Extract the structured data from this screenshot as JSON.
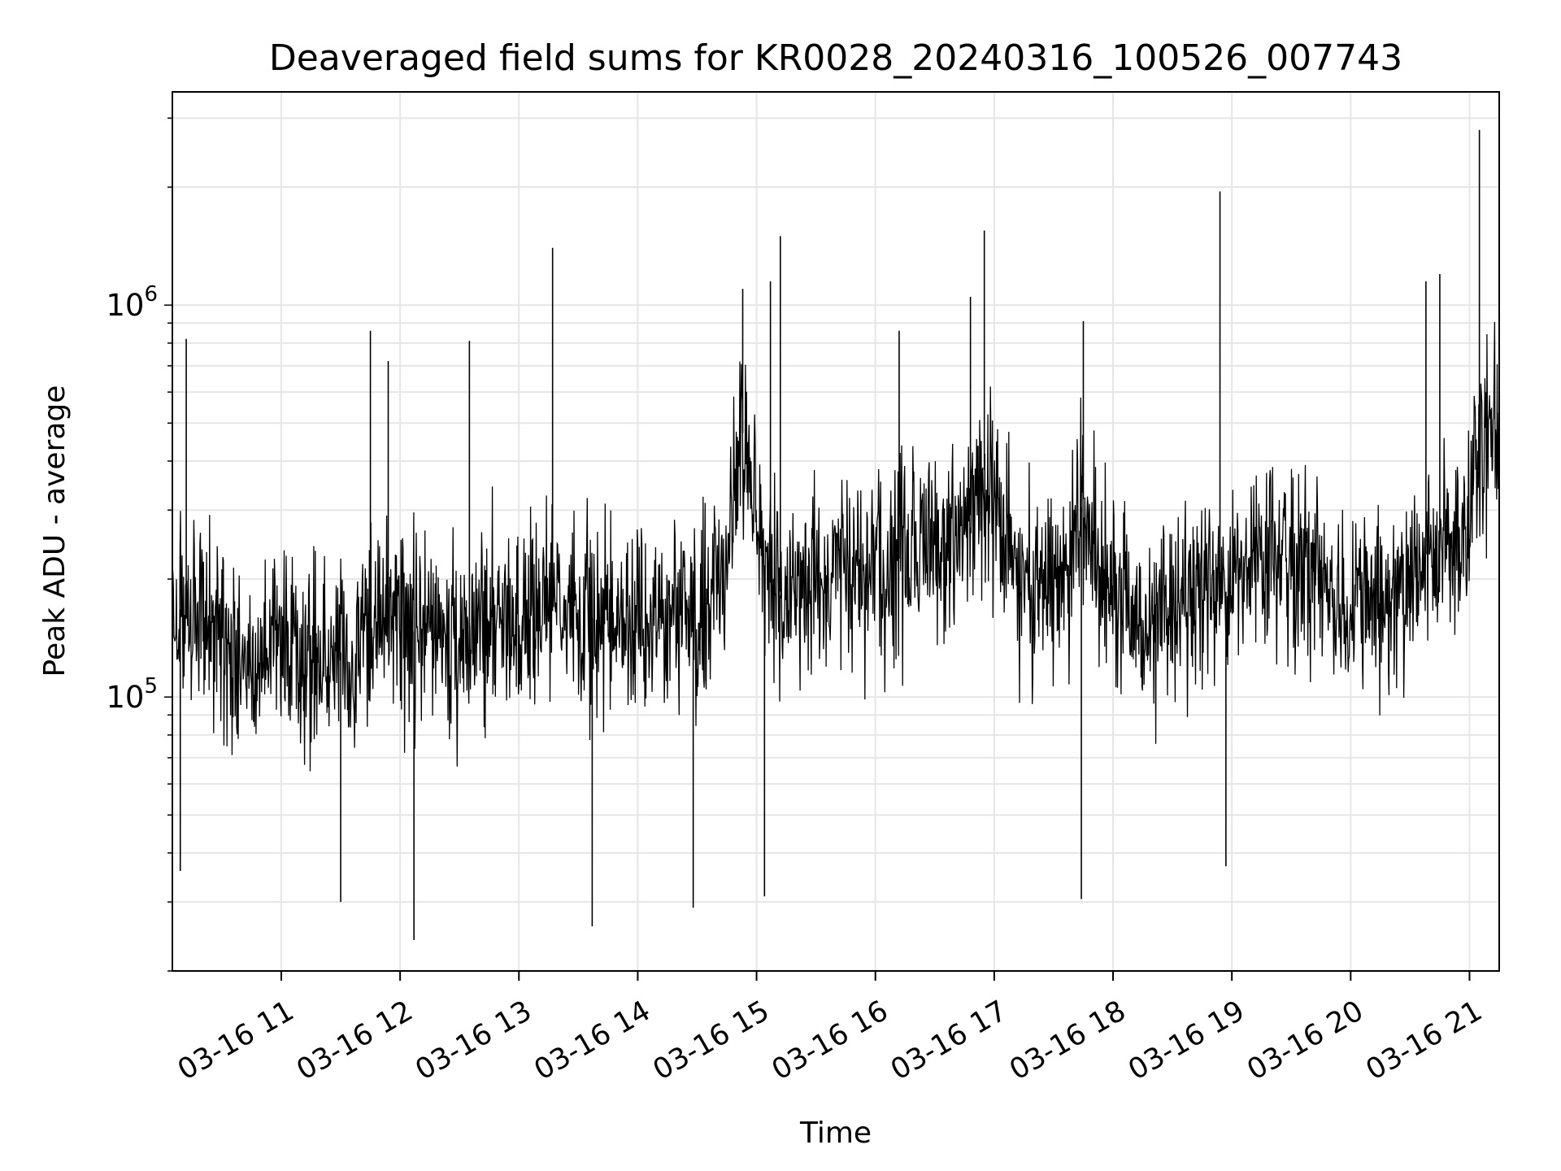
{
  "chart_data": {
    "type": "line",
    "title": "Deaveraged field sums for KR0028_20240316_100526_007743",
    "xlabel": "Time",
    "ylabel": "Peak ADU - average",
    "yscale": "log",
    "ylim": [
      20000,
      3500000
    ],
    "xlim": [
      "2024-03-16 10:05",
      "2024-03-16 21:15"
    ],
    "grid": true,
    "x_ticks": [
      {
        "label": "03-16 11",
        "value": "2024-03-16 11:00"
      },
      {
        "label": "03-16 12",
        "value": "2024-03-16 12:00"
      },
      {
        "label": "03-16 13",
        "value": "2024-03-16 13:00"
      },
      {
        "label": "03-16 14",
        "value": "2024-03-16 14:00"
      },
      {
        "label": "03-16 15",
        "value": "2024-03-16 15:00"
      },
      {
        "label": "03-16 16",
        "value": "2024-03-16 16:00"
      },
      {
        "label": "03-16 17",
        "value": "2024-03-16 17:00"
      },
      {
        "label": "03-16 18",
        "value": "2024-03-16 18:00"
      },
      {
        "label": "03-16 19",
        "value": "2024-03-16 19:00"
      },
      {
        "label": "03-16 20",
        "value": "2024-03-16 20:00"
      },
      {
        "label": "03-16 21",
        "value": "2024-03-16 21:00"
      }
    ],
    "y_ticks": [
      {
        "base": "10",
        "exp": "5",
        "value": 100000
      },
      {
        "base": "10",
        "exp": "6",
        "value": 1000000
      }
    ],
    "series": [
      {
        "color": "#000000",
        "points": [
          [
            "2024-03-16 10:05",
            180000
          ],
          [
            "2024-03-16 10:15",
            150000
          ],
          [
            "2024-03-16 10:25",
            160000
          ],
          [
            "2024-03-16 10:35",
            130000
          ],
          [
            "2024-03-16 10:45",
            120000
          ],
          [
            "2024-03-16 10:55",
            140000
          ],
          [
            "2024-03-16 11:05",
            130000
          ],
          [
            "2024-03-16 11:15",
            120000
          ],
          [
            "2024-03-16 11:25",
            135000
          ],
          [
            "2024-03-16 11:35",
            125000
          ],
          [
            "2024-03-16 11:45",
            150000
          ],
          [
            "2024-03-16 11:55",
            160000
          ],
          [
            "2024-03-16 12:05",
            145000
          ],
          [
            "2024-03-16 12:15",
            155000
          ],
          [
            "2024-03-16 12:25",
            140000
          ],
          [
            "2024-03-16 12:35",
            150000
          ],
          [
            "2024-03-16 12:45",
            160000
          ],
          [
            "2024-03-16 12:55",
            155000
          ],
          [
            "2024-03-16 13:05",
            160000
          ],
          [
            "2024-03-16 13:15",
            170000
          ],
          [
            "2024-03-16 13:25",
            150000
          ],
          [
            "2024-03-16 13:35",
            160000
          ],
          [
            "2024-03-16 13:45",
            155000
          ],
          [
            "2024-03-16 13:55",
            170000
          ],
          [
            "2024-03-16 14:05",
            160000
          ],
          [
            "2024-03-16 14:15",
            150000
          ],
          [
            "2024-03-16 14:25",
            165000
          ],
          [
            "2024-03-16 14:35",
            180000
          ],
          [
            "2024-03-16 14:45",
            220000
          ],
          [
            "2024-03-16 14:52",
            500000
          ],
          [
            "2024-03-16 14:58",
            350000
          ],
          [
            "2024-03-16 15:05",
            200000
          ],
          [
            "2024-03-16 15:15",
            180000
          ],
          [
            "2024-03-16 15:25",
            190000
          ],
          [
            "2024-03-16 15:35",
            200000
          ],
          [
            "2024-03-16 15:45",
            210000
          ],
          [
            "2024-03-16 15:55",
            220000
          ],
          [
            "2024-03-16 16:05",
            215000
          ],
          [
            "2024-03-16 16:15",
            230000
          ],
          [
            "2024-03-16 16:25",
            240000
          ],
          [
            "2024-03-16 16:35",
            230000
          ],
          [
            "2024-03-16 16:45",
            260000
          ],
          [
            "2024-03-16 16:55",
            380000
          ],
          [
            "2024-03-16 17:05",
            260000
          ],
          [
            "2024-03-16 17:15",
            190000
          ],
          [
            "2024-03-16 17:25",
            180000
          ],
          [
            "2024-03-16 17:35",
            200000
          ],
          [
            "2024-03-16 17:45",
            320000
          ],
          [
            "2024-03-16 17:55",
            210000
          ],
          [
            "2024-03-16 18:05",
            170000
          ],
          [
            "2024-03-16 18:15",
            150000
          ],
          [
            "2024-03-16 18:25",
            160000
          ],
          [
            "2024-03-16 18:35",
            170000
          ],
          [
            "2024-03-16 18:45",
            200000
          ],
          [
            "2024-03-16 18:55",
            180000
          ],
          [
            "2024-03-16 19:05",
            210000
          ],
          [
            "2024-03-16 19:15",
            240000
          ],
          [
            "2024-03-16 19:25",
            230000
          ],
          [
            "2024-03-16 19:35",
            220000
          ],
          [
            "2024-03-16 19:45",
            200000
          ],
          [
            "2024-03-16 19:55",
            170000
          ],
          [
            "2024-03-16 20:05",
            160000
          ],
          [
            "2024-03-16 20:15",
            170000
          ],
          [
            "2024-03-16 20:25",
            180000
          ],
          [
            "2024-03-16 20:35",
            220000
          ],
          [
            "2024-03-16 20:45",
            260000
          ],
          [
            "2024-03-16 20:55",
            240000
          ],
          [
            "2024-03-16 21:05",
            420000
          ],
          [
            "2024-03-16 21:15",
            450000
          ]
        ],
        "spikes_high": [
          [
            "2024-03-16 10:12",
            820000
          ],
          [
            "2024-03-16 11:45",
            860000
          ],
          [
            "2024-03-16 11:54",
            720000
          ],
          [
            "2024-03-16 12:35",
            810000
          ],
          [
            "2024-03-16 13:17",
            1400000
          ],
          [
            "2024-03-16 14:53",
            1100000
          ],
          [
            "2024-03-16 15:12",
            1500000
          ],
          [
            "2024-03-16 15:07",
            1150000
          ],
          [
            "2024-03-16 16:12",
            860000
          ],
          [
            "2024-03-16 16:55",
            1550000
          ],
          [
            "2024-03-16 16:48",
            1050000
          ],
          [
            "2024-03-16 17:45",
            910000
          ],
          [
            "2024-03-16 18:54",
            1950000
          ],
          [
            "2024-03-16 20:38",
            1150000
          ],
          [
            "2024-03-16 20:45",
            1200000
          ],
          [
            "2024-03-16 21:05",
            2800000
          ]
        ],
        "spikes_low": [
          [
            "2024-03-16 10:09",
            36000
          ],
          [
            "2024-03-16 11:30",
            30000
          ],
          [
            "2024-03-16 12:07",
            24000
          ],
          [
            "2024-03-16 13:37",
            26000
          ],
          [
            "2024-03-16 14:28",
            29000
          ],
          [
            "2024-03-16 15:04",
            31000
          ],
          [
            "2024-03-16 17:44",
            30500
          ],
          [
            "2024-03-16 18:57",
            37000
          ]
        ]
      }
    ]
  }
}
